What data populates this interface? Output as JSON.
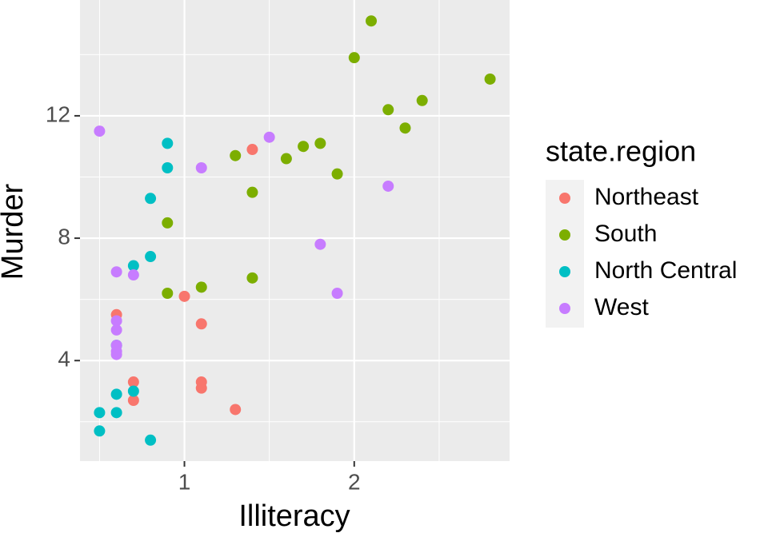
{
  "chart_data": {
    "type": "scatter",
    "x_label": "Illiteracy",
    "y_label": "Murder",
    "legend_title": "state.region",
    "legend_position": "right",
    "grid": true,
    "xlim": [
      0.385,
      2.915
    ],
    "ylim": [
      0.715,
      15.785
    ],
    "xticks": [
      1,
      2
    ],
    "yticks": [
      4,
      8,
      12
    ],
    "series": [
      {
        "name": "Northeast",
        "color": "#F8766D",
        "x": [
          1.1,
          0.7,
          1.1,
          0.7,
          1.1,
          1.4,
          1.0,
          1.3,
          0.6
        ],
        "values": [
          3.1,
          2.7,
          3.3,
          3.3,
          5.2,
          10.9,
          6.1,
          2.4,
          5.5
        ]
      },
      {
        "name": "South",
        "color": "#7CAE00",
        "x": [
          2.1,
          1.9,
          0.9,
          1.3,
          2.0,
          1.6,
          2.8,
          0.9,
          2.4,
          1.8,
          1.1,
          2.3,
          1.7,
          2.2,
          1.4,
          1.4
        ],
        "values": [
          15.1,
          10.1,
          6.2,
          10.7,
          13.9,
          10.6,
          13.2,
          8.5,
          12.5,
          11.1,
          6.4,
          11.6,
          11.0,
          12.2,
          9.5,
          6.7
        ]
      },
      {
        "name": "North Central",
        "color": "#00BFC4",
        "x": [
          0.9,
          0.7,
          0.5,
          0.6,
          0.9,
          0.6,
          0.8,
          0.6,
          0.8,
          0.8,
          0.5,
          0.7
        ],
        "values": [
          10.3,
          7.1,
          2.3,
          4.5,
          11.1,
          2.3,
          9.3,
          2.9,
          1.4,
          7.4,
          1.7,
          3.0
        ]
      },
      {
        "name": "West",
        "color": "#C77CFF",
        "x": [
          1.5,
          1.8,
          1.1,
          0.7,
          1.9,
          0.6,
          0.6,
          0.5,
          2.2,
          0.6,
          0.6,
          0.6,
          0.6
        ],
        "values": [
          11.3,
          7.8,
          10.3,
          6.8,
          6.2,
          5.3,
          5.0,
          11.5,
          9.7,
          4.2,
          4.5,
          4.3,
          6.9
        ]
      }
    ]
  }
}
